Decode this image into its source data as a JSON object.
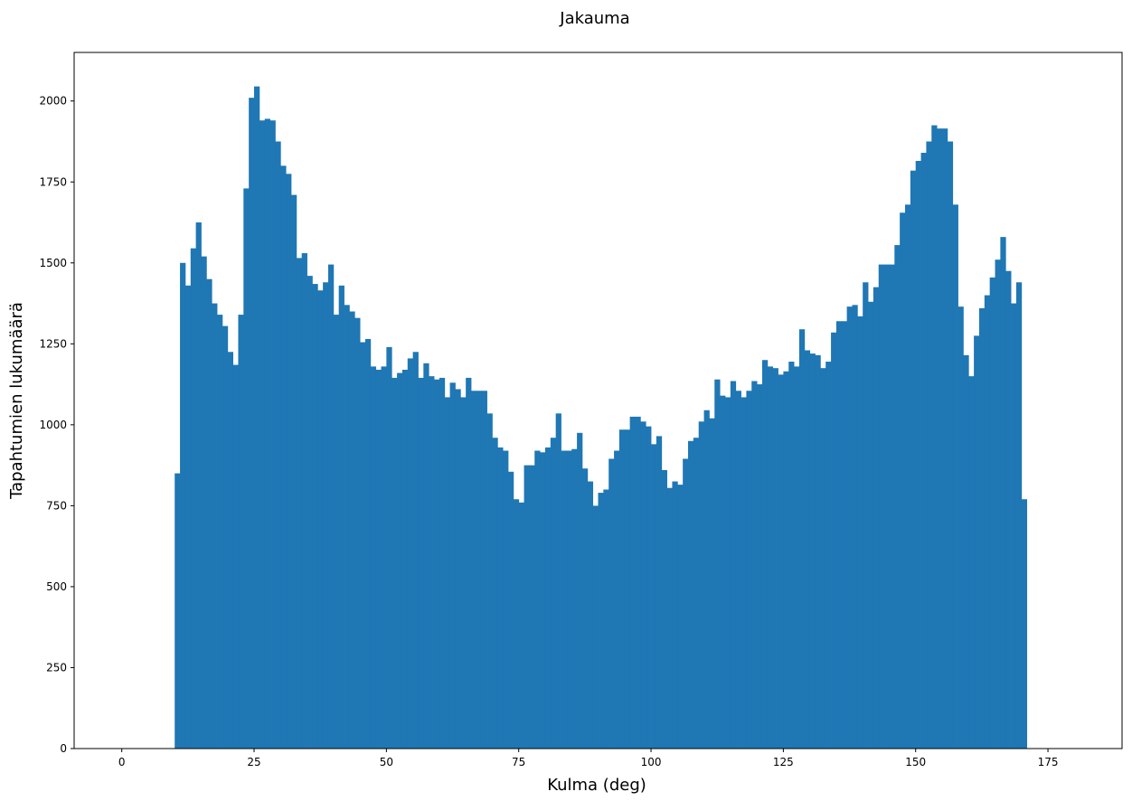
{
  "chart_data": {
    "type": "bar",
    "title": "Jakauma",
    "xlabel": "Kulma (deg)",
    "ylabel": "Tapahtumien lukumäärä",
    "xlim": [
      -9,
      189
    ],
    "ylim": [
      0,
      2150
    ],
    "xticks": [
      0,
      25,
      50,
      75,
      100,
      125,
      150,
      175
    ],
    "yticks": [
      0,
      250,
      500,
      750,
      1000,
      1250,
      1500,
      1750,
      2000
    ],
    "grid": false,
    "bar_color": "#1f77b4",
    "bin_start": 10,
    "bin_width": 1,
    "values": [
      850,
      1500,
      1430,
      1545,
      1625,
      1520,
      1450,
      1375,
      1340,
      1305,
      1225,
      1185,
      1340,
      1730,
      2010,
      2045,
      1940,
      1945,
      1940,
      1875,
      1800,
      1775,
      1710,
      1515,
      1530,
      1460,
      1435,
      1415,
      1440,
      1495,
      1340,
      1430,
      1370,
      1350,
      1330,
      1255,
      1265,
      1180,
      1170,
      1180,
      1240,
      1145,
      1160,
      1170,
      1205,
      1225,
      1145,
      1190,
      1150,
      1140,
      1145,
      1085,
      1130,
      1110,
      1085,
      1145,
      1105,
      1105,
      1105,
      1035,
      960,
      930,
      920,
      855,
      770,
      760,
      875,
      875,
      920,
      915,
      930,
      960,
      1035,
      920,
      920,
      925,
      975,
      865,
      825,
      750,
      790,
      800,
      895,
      920,
      985,
      985,
      1025,
      1025,
      1010,
      995,
      940,
      965,
      860,
      805,
      825,
      815,
      895,
      950,
      960,
      1010,
      1045,
      1020,
      1140,
      1090,
      1085,
      1135,
      1105,
      1085,
      1105,
      1135,
      1125,
      1200,
      1180,
      1175,
      1155,
      1165,
      1195,
      1180,
      1295,
      1230,
      1220,
      1215,
      1175,
      1195,
      1285,
      1320,
      1320,
      1365,
      1370,
      1335,
      1440,
      1380,
      1425,
      1495,
      1495,
      1495,
      1555,
      1655,
      1680,
      1785,
      1815,
      1840,
      1875,
      1925,
      1915,
      1915,
      1875,
      1680,
      1365,
      1215,
      1150,
      1275,
      1360,
      1400,
      1455,
      1510,
      1580,
      1475,
      1375,
      1440,
      770
    ]
  }
}
